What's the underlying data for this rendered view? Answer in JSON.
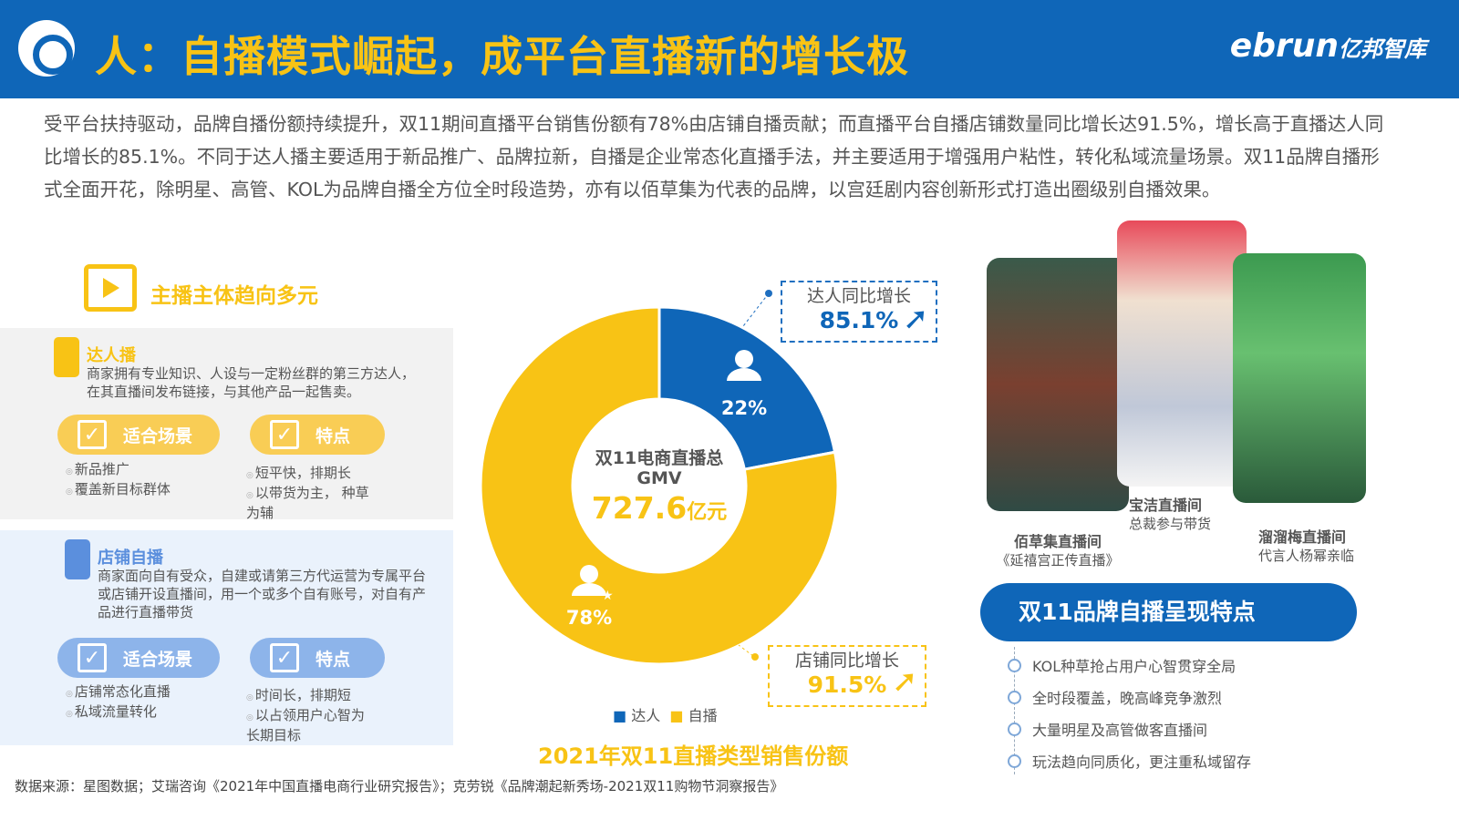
{
  "header": {
    "title": "人：自播模式崛起，成平台直播新的增长极",
    "brand": "ebrun",
    "brand_cn": "亿邦智库"
  },
  "intro": "受平台扶持驱动，品牌自播份额持续提升，双11期间直播平台销售份额有78%由店铺自播贡献；而直播平台自播店铺数量同比增长达91.5%，增长高于直播达人同比增长的85.1%。不同于达人播主要适用于新品推广、品牌拉新，自播是企业常态化直播手法，并主要适用于增强用户粘性，转化私域流量场景。双11品牌自播形式全面开花，除明星、高管、KOL为品牌自播全方位全时段造势，亦有以佰草集为代表的品牌，以宫廷剧内容创新形式打造出圈级别自播效果。",
  "left": {
    "heading": "主播主体趋向多元",
    "panels": [
      {
        "title": "达人播",
        "desc": "商家拥有专业知识、人设与一定粉丝群的第三方达人，在其直播间发布链接，与其他产品一起售卖。",
        "pill1": "适合场景",
        "pill2": "特点",
        "scenes": [
          "新品推广",
          "覆盖新目标群体"
        ],
        "features": [
          "短平快，排期长",
          "以带货为主， 种草为辅"
        ],
        "color": "#f8c315"
      },
      {
        "title": "店铺自播",
        "desc": "商家面向自有受众，自建或请第三方代运营为专属平台或店铺开设直播间，用一个或多个自有账号，对自有产品进行直播带货",
        "pill1": "适合场景",
        "pill2": "特点",
        "scenes": [
          "店铺常态化直播",
          "私域流量转化"
        ],
        "features": [
          "时间长，排期短",
          "以占领用户心智为长期目标"
        ],
        "color": "#5b8fdd"
      }
    ]
  },
  "chart_data": {
    "type": "pie",
    "donut": true,
    "title": "2021年双11直播类型销售份额",
    "center_label": "双11电商直播总GMV",
    "center_value": "727.6",
    "center_unit": "亿元",
    "series": [
      {
        "name": "达人",
        "value": 22,
        "label": "22%",
        "color": "#0f66b8"
      },
      {
        "name": "自播",
        "value": 78,
        "label": "78%",
        "color": "#f8c315"
      }
    ],
    "legend": "bottom",
    "annotations": [
      {
        "label": "达人同比增长",
        "value": "85.1%"
      },
      {
        "label": "店铺同比增长",
        "value": "91.5%"
      }
    ]
  },
  "right": {
    "photos": [
      {
        "name": "佰草集直播间",
        "sub": "《延禧宫正传直播》"
      },
      {
        "name": "宝洁直播间",
        "sub": "总裁参与带货"
      },
      {
        "name": "溜溜梅直播间",
        "sub": "代言人杨幂亲临"
      }
    ],
    "features_title": "双11品牌自播呈现特点",
    "features": [
      "KOL种草抢占用户心智贯穿全局",
      "全时段覆盖，晚高峰竞争激烈",
      "大量明星及高管做客直播间",
      "玩法趋向同质化，更注重私域留存"
    ]
  },
  "source": "数据来源：星图数据；艾瑞咨询《2021年中国直播电商行业研究报告》；克劳锐《品牌潮起新秀场-2021双11购物节洞察报告》"
}
